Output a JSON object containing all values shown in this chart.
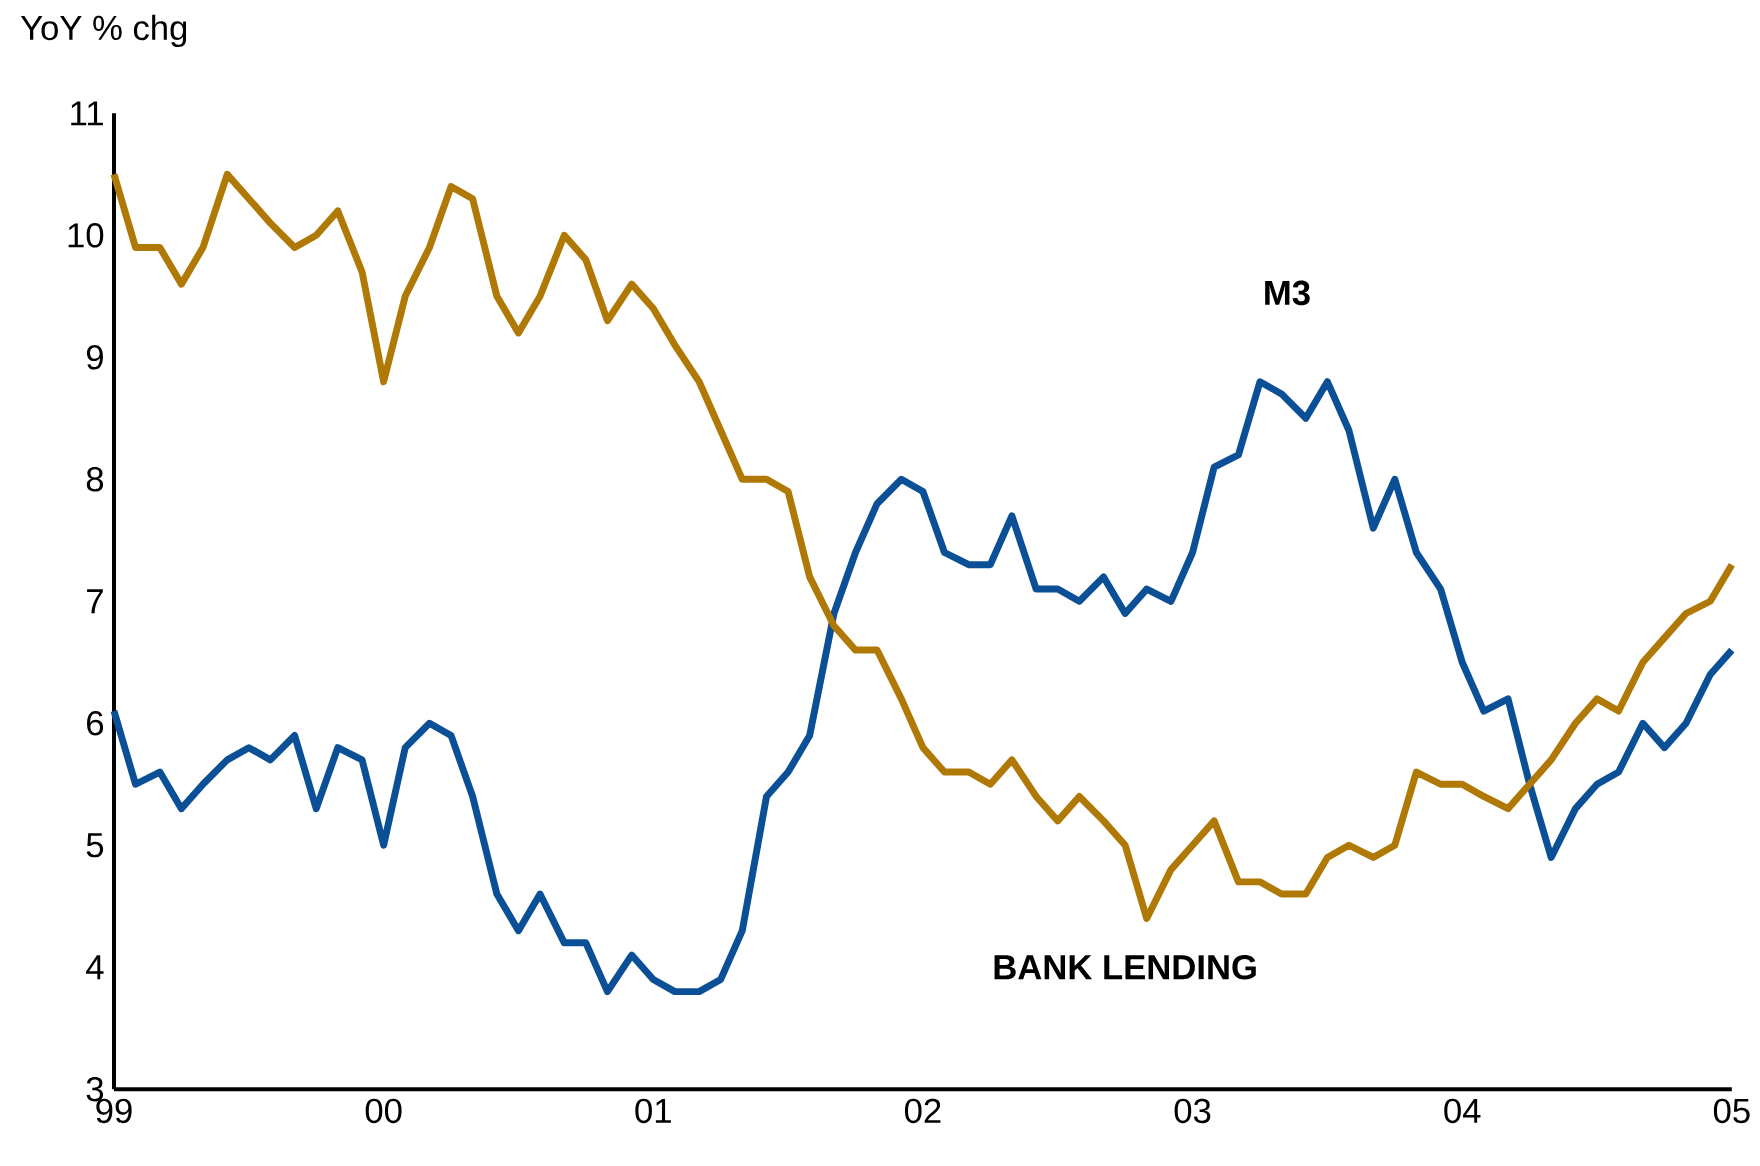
{
  "chart_data": {
    "type": "line",
    "ylabel": "YoY % chg",
    "x": [
      "1999-01",
      "1999-02",
      "1999-03",
      "1999-04",
      "1999-05",
      "1999-06",
      "1999-07",
      "1999-08",
      "1999-09",
      "1999-10",
      "1999-11",
      "1999-12",
      "2000-01",
      "2000-02",
      "2000-03",
      "2000-04",
      "2000-05",
      "2000-06",
      "2000-07",
      "2000-08",
      "2000-09",
      "2000-10",
      "2000-11",
      "2000-12",
      "2001-01",
      "2001-02",
      "2001-03",
      "2001-04",
      "2001-05",
      "2001-06",
      "2001-07",
      "2001-08",
      "2001-09",
      "2001-10",
      "2001-11",
      "2001-12",
      "2002-01",
      "2002-02",
      "2002-03",
      "2002-04",
      "2002-05",
      "2002-06",
      "2002-07",
      "2002-08",
      "2002-09",
      "2002-10",
      "2002-11",
      "2002-12",
      "2003-01",
      "2003-02",
      "2003-03",
      "2003-04",
      "2003-05",
      "2003-06",
      "2003-07",
      "2003-08",
      "2003-09",
      "2003-10",
      "2003-11",
      "2003-12",
      "2004-01",
      "2004-02",
      "2004-03",
      "2004-04",
      "2004-05",
      "2004-06",
      "2004-07",
      "2004-08",
      "2004-09",
      "2004-10",
      "2004-11",
      "2004-12",
      "2005-01"
    ],
    "series": [
      {
        "name": "M3",
        "color": "#0b4f96",
        "values": [
          6.1,
          5.5,
          5.6,
          5.3,
          5.5,
          5.7,
          5.8,
          5.7,
          5.9,
          5.3,
          5.8,
          5.7,
          5.0,
          5.8,
          6.0,
          5.9,
          5.4,
          4.6,
          4.3,
          4.6,
          4.2,
          4.2,
          3.8,
          4.1,
          3.9,
          3.8,
          3.8,
          3.9,
          4.3,
          5.4,
          5.6,
          5.9,
          6.9,
          7.4,
          7.8,
          8.0,
          7.9,
          7.4,
          7.3,
          7.3,
          7.7,
          7.1,
          7.1,
          7.0,
          7.2,
          6.9,
          7.1,
          7.0,
          7.4,
          8.1,
          8.2,
          8.8,
          8.7,
          8.5,
          8.8,
          8.4,
          7.6,
          8.0,
          7.4,
          7.1,
          6.5,
          6.1,
          6.2,
          5.5,
          4.9,
          5.3,
          5.5,
          5.6,
          6.0,
          5.8,
          6.0,
          6.4,
          6.6
        ]
      },
      {
        "name": "BANK LENDING",
        "color": "#b07805",
        "values": [
          10.5,
          9.9,
          9.9,
          9.6,
          9.9,
          10.5,
          10.3,
          10.1,
          9.9,
          10.0,
          10.2,
          9.7,
          8.8,
          9.5,
          9.9,
          10.4,
          10.3,
          9.5,
          9.2,
          9.5,
          10.0,
          9.8,
          9.3,
          9.6,
          9.4,
          9.1,
          8.8,
          8.4,
          8.0,
          8.0,
          7.9,
          7.2,
          6.8,
          6.6,
          6.6,
          6.2,
          5.8,
          5.6,
          5.6,
          5.5,
          5.7,
          5.4,
          5.2,
          5.4,
          5.2,
          5.0,
          4.4,
          4.8,
          5.0,
          5.2,
          4.7,
          4.7,
          4.6,
          4.6,
          4.9,
          5.0,
          4.9,
          5.0,
          5.6,
          5.5,
          5.5,
          5.4,
          5.3,
          5.5,
          5.7,
          6.0,
          6.2,
          6.1,
          6.5,
          6.7,
          6.9,
          7.0,
          7.3
        ]
      }
    ],
    "xlim": [
      "1999-01",
      "2005-01"
    ],
    "xticks": [
      {
        "value": "1999-01",
        "label": "99"
      },
      {
        "value": "2000-01",
        "label": "00"
      },
      {
        "value": "2001-01",
        "label": "01"
      },
      {
        "value": "2002-01",
        "label": "02"
      },
      {
        "value": "2003-01",
        "label": "03"
      },
      {
        "value": "2004-01",
        "label": "04"
      },
      {
        "value": "2005-01",
        "label": "05"
      }
    ],
    "ylim": [
      3,
      11
    ],
    "yticks": [
      3,
      4,
      5,
      6,
      7,
      8,
      9,
      10,
      11
    ],
    "grid": false,
    "legend": false,
    "marker": "none",
    "line_style": "solid"
  }
}
